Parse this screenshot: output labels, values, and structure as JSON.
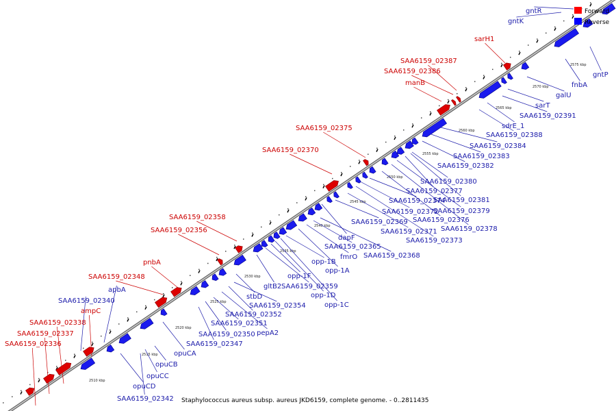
{
  "caption": "Staphylococcus aureus subsp. aureus JKD6159, complete genome. - 0..2811435",
  "legend": [
    {
      "label": "Forward",
      "color": "#ff0000"
    },
    {
      "label": "Reverse",
      "color": "#0000ff"
    }
  ],
  "colors": {
    "forward": "#dd0000",
    "reverse": "#1a1aee",
    "backbone": "#888888",
    "forward_text": "#cc0000",
    "reverse_text": "#1a1aaa"
  },
  "kbp_ticks": [
    "2510 kbp",
    "2515 kbp",
    "2520 kbp",
    "2525 kbp",
    "2530 kbp",
    "2535 kbp",
    "2540 kbp",
    "2545 kbp",
    "2550 kbp",
    "2555 kbp",
    "2560 kbp",
    "2565 kbp",
    "2570 kbp",
    "2575 kbp"
  ],
  "forward_genes": [
    "SAA6159_02336",
    "SAA6159_02337",
    "SAA6159_02338",
    "ampC",
    "SAA6159_02348",
    "pnbA",
    "SAA6159_02356",
    "SAA6159_02358",
    "SAA6159_02370",
    "SAA6159_02375",
    "manB",
    "SAA6159_02386",
    "SAA6159_02387",
    "sarH1"
  ],
  "reverse_genes": [
    "SAA6159_02340",
    "apbA",
    "opuCD",
    "SAA6159_02342",
    "opuCC",
    "opuCB",
    "opuCA",
    "SAA6159_02347",
    "SAA6159_02350",
    "SAA6159_02351",
    "pepA2",
    "SAA6159_02352",
    "SAA6159_02354",
    "stbD",
    "gltB2",
    "SAA6159_02359",
    "opp-1F",
    "opp-1D",
    "opp-1C",
    "opp-1B",
    "opp-1A",
    "fmrO",
    "SAA6159_02365",
    "SAA6159_02368",
    "dapF",
    "SAA6159_02369",
    "SAA6159_02371",
    "SAA6159_02373",
    "SAA6159_02372",
    "SAA6159_02374",
    "SAA6159_02376",
    "SAA6159_02378",
    "SAA6159_02379",
    "SAA6159_02377",
    "SAA6159_02381",
    "SAA6159_02380",
    "SAA6159_02382",
    "SAA6159_02383",
    "SAA6159_02384",
    "SAA6159_02388",
    "sdrE_1",
    "SAA6159_02391",
    "sarT",
    "galU",
    "fnbA",
    "gntP",
    "gntK",
    "gntR"
  ]
}
